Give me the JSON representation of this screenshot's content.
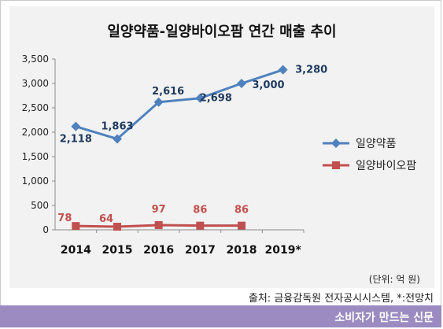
{
  "title": "일양약품-일양바이오팜 연간 매출 추이",
  "unit_note": "(단위: 억 원)",
  "source": "출처: 금융감독원 전자공시시스템, *:전망치",
  "footer": "소비자가 만드는 신문",
  "colors": {
    "series1": "#4f81bd",
    "series2": "#c0504d",
    "label1": "#1f3a5f",
    "label2": "#c0504d",
    "panel": "#f2f2f2",
    "footer": "#9b8bc0"
  },
  "chart_data": {
    "type": "line",
    "title": "일양약품-일양바이오팜 연간 매출 추이",
    "xlabel": "",
    "ylabel": "",
    "x": [
      "2014",
      "2015",
      "2016",
      "2017",
      "2018",
      "2019*"
    ],
    "yticks": [
      "0",
      "500",
      "1,000",
      "1,500",
      "2,000",
      "2,500",
      "3,000",
      "3,500"
    ],
    "ylim": [
      0,
      3500
    ],
    "grid": false,
    "legend_position": "right",
    "series": [
      {
        "name": "일양약품",
        "values": [
          2118,
          1863,
          2616,
          2698,
          3000,
          3280
        ],
        "labels": [
          "2,118",
          "1,863",
          "2,616",
          "2,698",
          "3,000",
          "3,280"
        ]
      },
      {
        "name": "일양바이오팜",
        "values": [
          78,
          64,
          97,
          86,
          86,
          null
        ],
        "labels": [
          "78",
          "64",
          "97",
          "86",
          "86",
          null
        ]
      }
    ]
  }
}
